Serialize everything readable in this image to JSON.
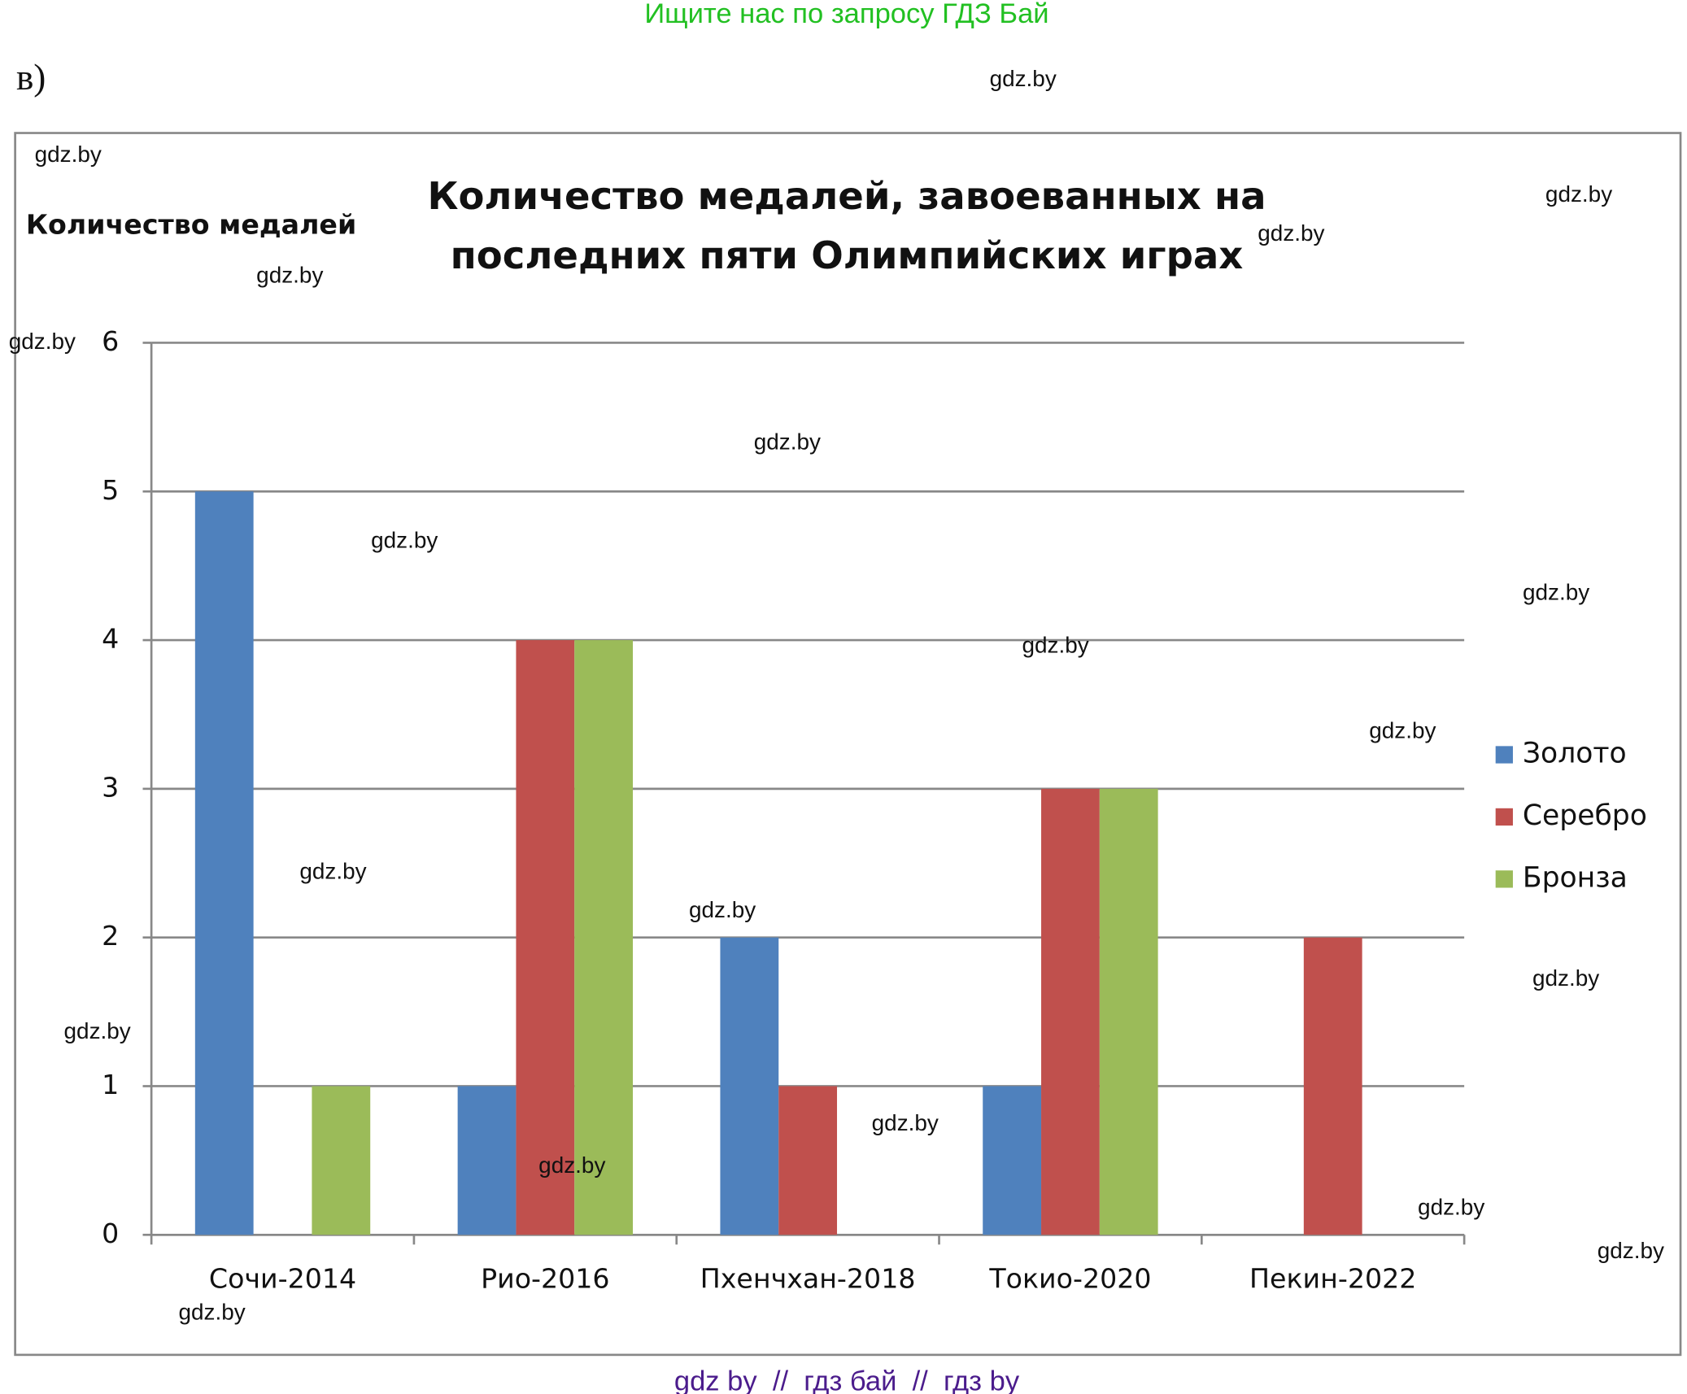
{
  "header": {
    "text": "Ищите нас по запросу ГДЗ Бай",
    "label": "в)"
  },
  "chart_data": {
    "type": "bar",
    "title": [
      "Количество медалей, завоеванных на",
      "последних пяти Олимпийских играх"
    ],
    "y_label": "Количество медалей",
    "categories": [
      "Сочи-2014",
      "Рио-2016",
      "Пхенчхан-2018",
      "Токио-2020",
      "Пекин-2022"
    ],
    "series": [
      {
        "name": "Золото",
        "color": "#4f81bd",
        "values": [
          5,
          1,
          2,
          1,
          0
        ]
      },
      {
        "name": "Серебро",
        "color": "#c0504d",
        "values": [
          0,
          4,
          1,
          3,
          2
        ]
      },
      {
        "name": "Бронза",
        "color": "#9bbb59",
        "values": [
          1,
          4,
          0,
          3,
          0
        ]
      }
    ],
    "ylim": [
      0,
      6
    ],
    "yticks": [
      0,
      1,
      2,
      3,
      4,
      5,
      6
    ],
    "grid": true,
    "legend": "right"
  },
  "watermarks": [
    "gdz.by",
    "gdz.by",
    "gdz.by",
    "gdz.by",
    "gdz.by",
    "gdz.by",
    "gdz.by",
    "gdz.by",
    "gdz.by",
    "gdz.by",
    "gdz.by",
    "gdz.by",
    "gdz.by",
    "gdz.by",
    "gdz.by",
    "gdz.by",
    "gdz.by",
    "gdz.by",
    "gdz.by",
    "gdz.by"
  ],
  "footer": "gdz by  //  гдз бай  //  гдз by"
}
